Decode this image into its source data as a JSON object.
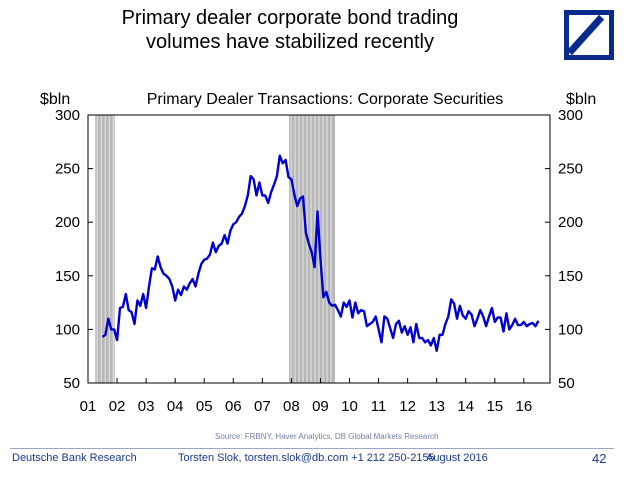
{
  "slide": {
    "title_line1": "Primary dealer corporate bond trading",
    "title_line2": "volumes have stabilized recently",
    "logo_label": "Deutsche Bank logo"
  },
  "footer": {
    "org": "Deutsche Bank Research",
    "author": "Torsten Slok, torsten.slok@db.com  +1 212 250-2155",
    "date": "August 2016",
    "page": "42",
    "source": "Source: FRBNY, Haver Analytics, DB Global Markets Research"
  },
  "chart_data": {
    "type": "line",
    "title": "Primary Dealer Transactions: Corporate Securities",
    "ylabel_left": "$bln",
    "ylabel_right": "$bln",
    "ylim": [
      50,
      300
    ],
    "yticks": [
      50,
      100,
      150,
      200,
      250,
      300
    ],
    "xlim": [
      2001,
      2016.9
    ],
    "xtick_labels": [
      "01",
      "02",
      "03",
      "04",
      "05",
      "06",
      "07",
      "08",
      "09",
      "10",
      "11",
      "12",
      "13",
      "14",
      "15",
      "16"
    ],
    "xtick_positions": [
      2001,
      2002,
      2003,
      2004,
      2005,
      2006,
      2007,
      2008,
      2009,
      2010,
      2011,
      2012,
      2013,
      2014,
      2015,
      2016
    ],
    "recessions": [
      [
        2001.25,
        2001.92
      ],
      [
        2007.92,
        2009.5
      ]
    ],
    "series": [
      {
        "name": "Primary Dealer Transactions: Corporate Securities",
        "color": "#0000d0",
        "x": [
          2001.5,
          2001.6,
          2001.7,
          2001.8,
          2001.9,
          2002.0,
          2002.1,
          2002.2,
          2002.3,
          2002.4,
          2002.5,
          2002.6,
          2002.7,
          2002.8,
          2002.9,
          2003.0,
          2003.1,
          2003.2,
          2003.3,
          2003.4,
          2003.5,
          2003.6,
          2003.7,
          2003.8,
          2003.9,
          2004.0,
          2004.1,
          2004.2,
          2004.3,
          2004.4,
          2004.5,
          2004.6,
          2004.7,
          2004.8,
          2004.9,
          2005.0,
          2005.1,
          2005.2,
          2005.3,
          2005.4,
          2005.5,
          2005.6,
          2005.7,
          2005.8,
          2005.9,
          2006.0,
          2006.1,
          2006.2,
          2006.3,
          2006.4,
          2006.5,
          2006.6,
          2006.7,
          2006.8,
          2006.9,
          2007.0,
          2007.1,
          2007.2,
          2007.3,
          2007.4,
          2007.5,
          2007.6,
          2007.7,
          2007.8,
          2007.9,
          2008.0,
          2008.1,
          2008.2,
          2008.3,
          2008.4,
          2008.5,
          2008.6,
          2008.7,
          2008.8,
          2008.9,
          2009.0,
          2009.1,
          2009.2,
          2009.3,
          2009.4,
          2009.5,
          2009.6,
          2009.7,
          2009.8,
          2009.9,
          2010.0,
          2010.1,
          2010.2,
          2010.3,
          2010.4,
          2010.5,
          2010.6,
          2010.7,
          2010.8,
          2010.9,
          2011.0,
          2011.1,
          2011.2,
          2011.3,
          2011.4,
          2011.5,
          2011.6,
          2011.7,
          2011.8,
          2011.9,
          2012.0,
          2012.1,
          2012.2,
          2012.3,
          2012.4,
          2012.5,
          2012.6,
          2012.7,
          2012.8,
          2012.9,
          2013.0,
          2013.1,
          2013.2,
          2013.3,
          2013.4,
          2013.5,
          2013.6,
          2013.7,
          2013.8,
          2013.9,
          2014.0,
          2014.1,
          2014.2,
          2014.3,
          2014.4,
          2014.5,
          2014.6,
          2014.7,
          2014.8,
          2014.9,
          2015.0,
          2015.1,
          2015.2,
          2015.3,
          2015.4,
          2015.5,
          2015.6,
          2015.7,
          2015.8,
          2015.9,
          2016.0,
          2016.1,
          2016.2,
          2016.3,
          2016.4,
          2016.5
        ],
        "values": [
          93,
          95,
          110,
          100,
          100,
          90,
          120,
          121,
          133,
          118,
          116,
          105,
          127,
          122,
          133,
          120,
          140,
          157,
          156,
          168,
          158,
          152,
          150,
          147,
          140,
          127,
          137,
          132,
          140,
          137,
          143,
          147,
          140,
          152,
          161,
          165,
          166,
          170,
          181,
          172,
          178,
          180,
          188,
          180,
          192,
          198,
          200,
          205,
          208,
          215,
          225,
          243,
          240,
          225,
          237,
          225,
          225,
          218,
          228,
          235,
          243,
          262,
          255,
          258,
          242,
          240,
          226,
          215,
          222,
          224,
          190,
          180,
          172,
          158,
          210,
          165,
          130,
          135,
          125,
          122,
          123,
          118,
          112,
          125,
          121,
          127,
          111,
          125,
          115,
          118,
          117,
          103,
          105,
          107,
          112,
          100,
          88,
          112,
          110,
          101,
          92,
          105,
          108,
          97,
          103,
          95,
          102,
          88,
          105,
          92,
          92,
          88,
          90,
          85,
          92,
          80,
          95,
          95,
          105,
          112,
          128,
          124,
          110,
          122,
          113,
          110,
          117,
          114,
          103,
          110,
          118,
          112,
          103,
          112,
          120,
          107,
          111,
          111,
          98,
          115,
          100,
          104,
          110,
          104,
          104,
          107,
          103,
          105,
          106,
          103,
          108
        ]
      }
    ]
  }
}
